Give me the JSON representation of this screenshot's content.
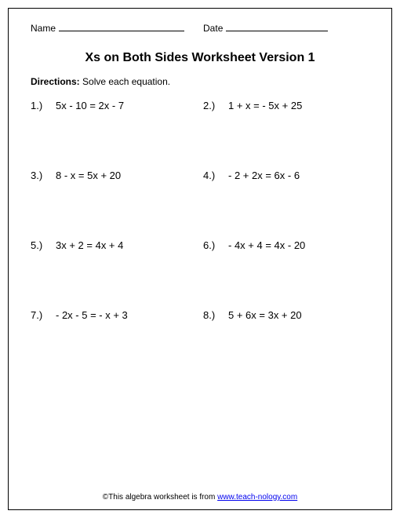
{
  "header": {
    "name_label": "Name",
    "date_label": "Date"
  },
  "title": "Xs on Both Sides Worksheet Version 1",
  "directions_label": "Directions:",
  "directions_text": " Solve each equation.",
  "problems": [
    {
      "num": "1.)",
      "eq": "5x - 10 = 2x - 7"
    },
    {
      "num": "2.)",
      "eq": "1 + x = - 5x + 25"
    },
    {
      "num": "3.)",
      "eq": "8 - x = 5x + 20"
    },
    {
      "num": "4.)",
      "eq": "- 2 + 2x = 6x - 6"
    },
    {
      "num": "5.)",
      "eq": "3x + 2 = 4x + 4"
    },
    {
      "num": "6.)",
      "eq": "- 4x + 4 = 4x - 20"
    },
    {
      "num": "7.)",
      "eq": "- 2x - 5 = - x + 3"
    },
    {
      "num": "8.)",
      "eq": "5 + 6x = 3x + 20"
    }
  ],
  "footer": {
    "prefix": "©This algebra worksheet is from ",
    "link_text": "www.teach-nology.com"
  }
}
